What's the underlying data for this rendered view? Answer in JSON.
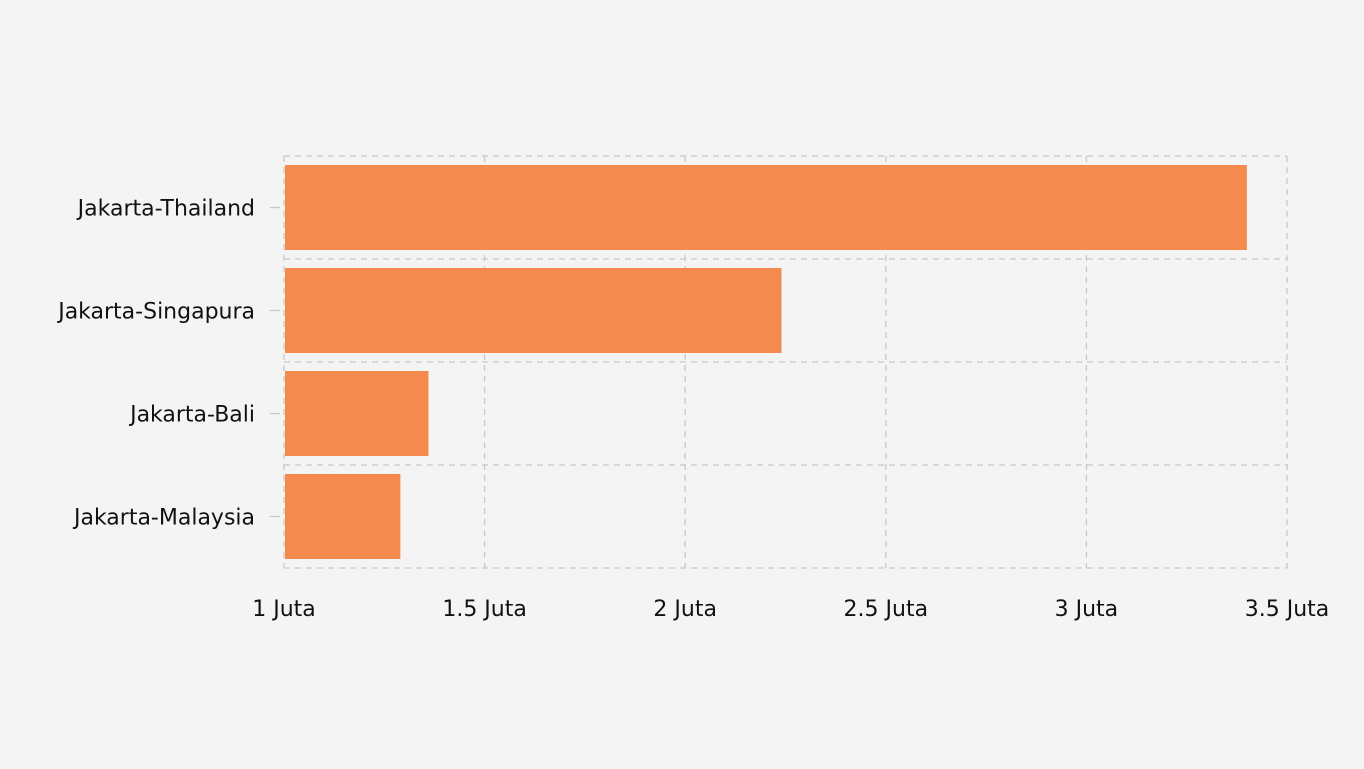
{
  "chart_data": {
    "type": "bar",
    "orientation": "horizontal",
    "categories": [
      "Jakarta-Thailand",
      "Jakarta-Singapura",
      "Jakarta-Bali",
      "Jakarta-Malaysia"
    ],
    "values": [
      3400000,
      2240000,
      1360000,
      1290000
    ],
    "title": "",
    "xlabel": "",
    "ylabel": "",
    "xlim": [
      1000000,
      3500000
    ],
    "x_ticks": [
      1000000,
      1500000,
      2000000,
      2500000,
      3000000,
      3500000
    ],
    "x_tick_labels": [
      "1 Juta",
      "1.5 Juta",
      "2 Juta",
      "2.5 Juta",
      "3 Juta",
      "3.5 Juta"
    ],
    "grid": true,
    "legend": "none",
    "colors": {
      "bar": "#f48a4e",
      "background": "#f4f4f4",
      "grid": "#c8c8c8",
      "text": "#111111"
    }
  }
}
